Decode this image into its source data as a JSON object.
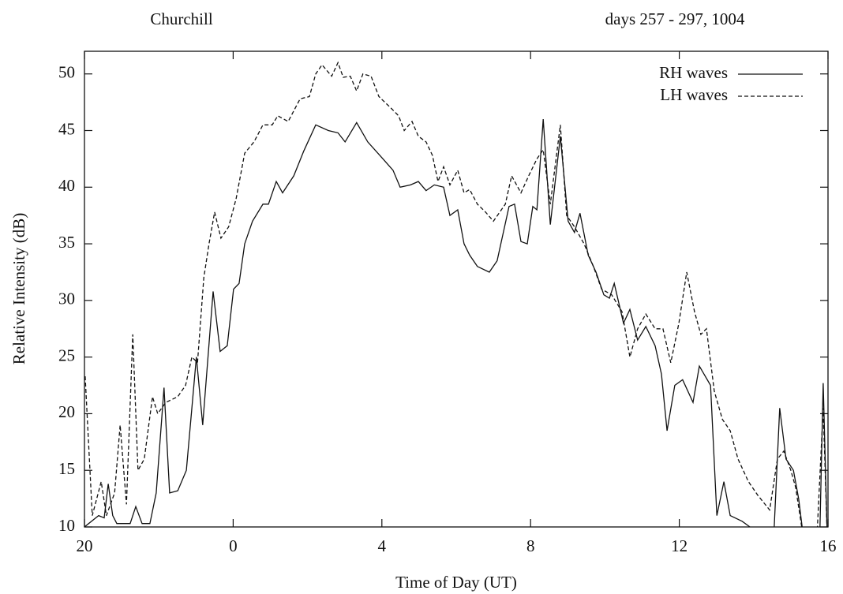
{
  "chart_data": {
    "type": "line",
    "title": "Churchill",
    "subtitle": "days 257 - 297, 1004",
    "x_label": "Time of Day (UT)",
    "y_label": "Relative Intensity (dB)",
    "xlim": [
      20,
      40
    ],
    "xticks": [
      20,
      {
        "value": 24,
        "label": "0"
      },
      {
        "value": 28,
        "label": "4"
      },
      {
        "value": 32,
        "label": "8"
      },
      {
        "value": 36,
        "label": "12"
      },
      {
        "value": 40,
        "label": "16"
      }
    ],
    "ylim": [
      10,
      52
    ],
    "yticks": [
      10,
      15,
      20,
      25,
      30,
      35,
      40,
      45,
      50
    ],
    "legend": "top-right",
    "series": [
      {
        "name": "RH waves",
        "color": "#111111",
        "style": "solid",
        "x": [
          20.0,
          20.38,
          20.53,
          20.64,
          20.76,
          20.87,
          21.23,
          21.38,
          21.55,
          21.76,
          21.93,
          22.14,
          22.29,
          22.51,
          22.74,
          23.01,
          23.18,
          23.46,
          23.65,
          23.84,
          24.01,
          24.16,
          24.31,
          24.52,
          24.8,
          24.95,
          25.16,
          25.33,
          25.63,
          25.9,
          26.22,
          26.56,
          26.82,
          27.01,
          27.32,
          27.62,
          28.03,
          28.3,
          28.49,
          28.77,
          28.98,
          29.19,
          29.41,
          29.66,
          29.83,
          30.04,
          30.21,
          30.36,
          30.57,
          30.89,
          31.1,
          31.42,
          31.57,
          31.74,
          31.91,
          32.06,
          32.17,
          32.34,
          32.53,
          32.8,
          33.01,
          33.18,
          33.33,
          33.55,
          33.76,
          33.97,
          34.12,
          34.25,
          34.5,
          34.67,
          34.88,
          35.1,
          35.35,
          35.52,
          35.67,
          35.88,
          36.09,
          36.37,
          36.54,
          36.84,
          37.01,
          37.2,
          37.37,
          37.69,
          37.9,
          38.22,
          38.54,
          38.7,
          38.87,
          39.07,
          39.21,
          39.38,
          39.77,
          39.87,
          39.98
        ],
        "values": [
          10,
          11,
          10.8,
          13.8,
          11,
          10.3,
          10.3,
          11.8,
          10.3,
          10.3,
          13,
          22.3,
          13,
          13.2,
          15,
          25,
          19,
          30.8,
          25.5,
          26,
          31,
          31.5,
          35,
          37,
          38.5,
          38.5,
          40.5,
          39.5,
          41,
          43.2,
          45.5,
          45,
          44.8,
          44,
          45.7,
          44,
          42.5,
          41.5,
          40,
          40.2,
          40.5,
          39.7,
          40.2,
          40,
          37.5,
          38,
          35,
          34,
          33,
          32.5,
          33.5,
          38.3,
          38.5,
          35.2,
          35,
          38.3,
          38,
          46,
          36.7,
          44.5,
          37,
          36,
          37.7,
          34,
          32.5,
          30.5,
          30.2,
          31.5,
          28,
          29.2,
          26.5,
          27.7,
          26,
          23.5,
          18.5,
          22.5,
          23,
          21,
          24.2,
          22.5,
          11,
          14,
          11,
          10.5,
          10,
          8,
          9,
          20.5,
          16,
          15,
          12.5,
          8,
          8,
          22.7,
          9
        ]
      },
      {
        "name": "LH waves",
        "color": "#111111",
        "style": "dashed",
        "x": [
          20.02,
          20.21,
          20.45,
          20.59,
          20.81,
          20.96,
          21.13,
          21.3,
          21.44,
          21.61,
          21.83,
          21.97,
          22.19,
          22.51,
          22.72,
          22.89,
          23.04,
          23.21,
          23.35,
          23.5,
          23.67,
          23.88,
          24.08,
          24.31,
          24.56,
          24.8,
          25.05,
          25.2,
          25.48,
          25.8,
          26.05,
          26.22,
          26.39,
          26.65,
          26.82,
          26.96,
          27.15,
          27.32,
          27.49,
          27.71,
          27.92,
          28.24,
          28.45,
          28.6,
          28.81,
          28.98,
          29.19,
          29.36,
          29.51,
          29.66,
          29.83,
          30.04,
          30.21,
          30.36,
          30.57,
          30.79,
          31.0,
          31.32,
          31.49,
          31.74,
          31.95,
          32.17,
          32.34,
          32.53,
          32.8,
          32.97,
          33.18,
          33.44,
          33.69,
          33.91,
          34.18,
          34.46,
          34.67,
          34.88,
          35.1,
          35.35,
          35.56,
          35.77,
          35.99,
          36.2,
          36.41,
          36.58,
          36.73,
          36.94,
          37.16,
          37.37,
          37.58,
          37.86,
          38.11,
          38.43,
          38.64,
          38.81,
          39.0,
          39.13,
          39.34,
          39.7,
          39.87,
          39.98
        ],
        "values": [
          23.3,
          11,
          14,
          11,
          13,
          19,
          12,
          27,
          15,
          16,
          21.5,
          20,
          21,
          21.5,
          22.5,
          25,
          24.5,
          32,
          35,
          37.8,
          35.5,
          36.5,
          39,
          43,
          44,
          45.5,
          45.5,
          46.3,
          45.8,
          47.8,
          48,
          50,
          50.8,
          49.8,
          51,
          49.7,
          49.8,
          48.5,
          50,
          49.8,
          48,
          47,
          46.3,
          45,
          45.8,
          44.5,
          44,
          42.8,
          40.5,
          41.8,
          40.2,
          41.5,
          39.5,
          39.8,
          38.5,
          37.8,
          37,
          38.5,
          41,
          39.5,
          41,
          42.5,
          43.3,
          38.5,
          45.5,
          37.5,
          36.5,
          35,
          33,
          31,
          30.5,
          29,
          25,
          27.5,
          28.8,
          27.5,
          27.5,
          24.5,
          28,
          32.5,
          29,
          27,
          27.5,
          22,
          19.5,
          18.5,
          16,
          14,
          12.8,
          11.5,
          16,
          16.7,
          15,
          13.5,
          9,
          9,
          20.5,
          9
        ]
      }
    ]
  }
}
